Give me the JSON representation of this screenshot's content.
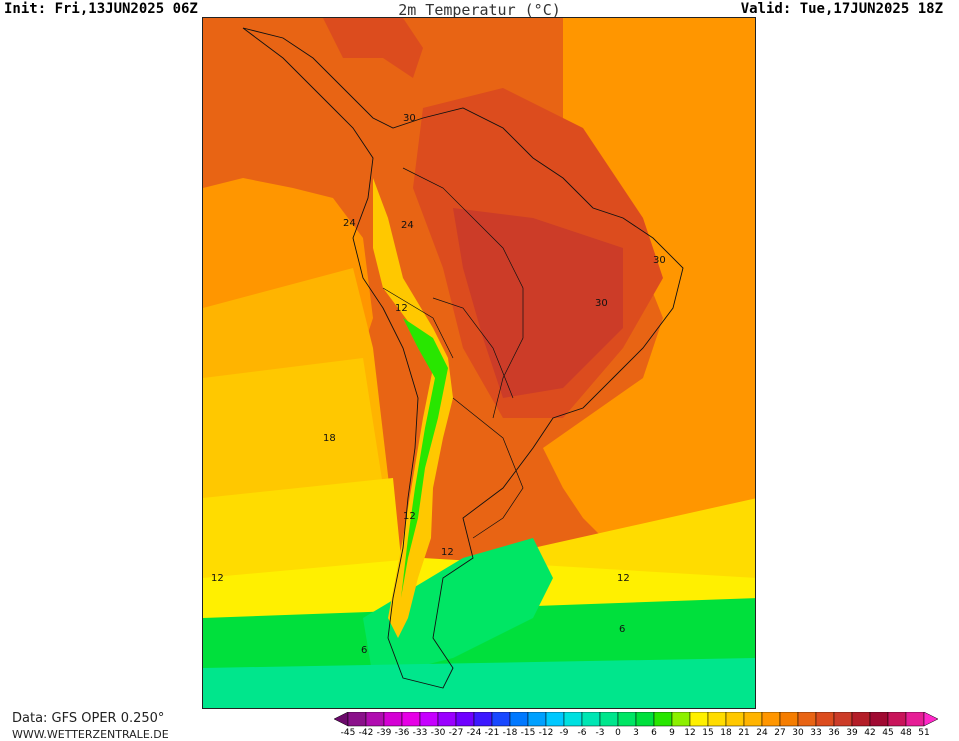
{
  "header": {
    "init": "Init: Fri,13JUN2025 06Z",
    "title": "2m Temperatur (°C)",
    "valid": "Valid: Tue,17JUN2025 18Z"
  },
  "footer": {
    "data_source": "Data: GFS OPER 0.250°",
    "website": "WWW.WETTERZENTRALE.DE"
  },
  "contour_labels": [
    "30",
    "24",
    "24",
    "30",
    "30",
    "12",
    "18",
    "12",
    "12",
    "12",
    "12",
    "6",
    "6"
  ],
  "legend": {
    "ticks": [
      "-45",
      "-42",
      "-39",
      "-36",
      "-33",
      "-30",
      "-27",
      "-24",
      "-21",
      "-18",
      "-15",
      "-12",
      "-9",
      "-6",
      "-3",
      "0",
      "3",
      "6",
      "9",
      "12",
      "15",
      "18",
      "21",
      "24",
      "27",
      "30",
      "33",
      "36",
      "39",
      "42",
      "45",
      "48",
      "51"
    ],
    "colors": [
      "#6b0a6b",
      "#8a108a",
      "#b00cb0",
      "#d400d4",
      "#e600e6",
      "#c600ff",
      "#9a00ff",
      "#6e00ff",
      "#3c18ff",
      "#1848ff",
      "#0078ff",
      "#00a0ff",
      "#00c8ff",
      "#00e0e0",
      "#00e6b4",
      "#00e68c",
      "#00e664",
      "#00e03c",
      "#28e600",
      "#8cf000",
      "#fff000",
      "#ffdc00",
      "#ffc800",
      "#ffb400",
      "#ff9600",
      "#f57d00",
      "#e86414",
      "#dc4c1e",
      "#cc3c28",
      "#b41e28",
      "#a00a32",
      "#c8145a",
      "#e61e96",
      "#ff28c8"
    ]
  }
}
